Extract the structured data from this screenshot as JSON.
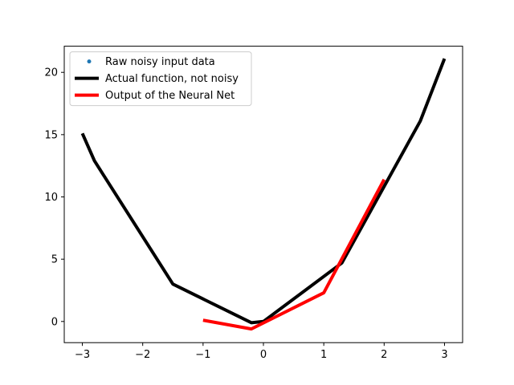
{
  "chart_data": {
    "type": "line",
    "title": "",
    "xlabel": "",
    "ylabel": "",
    "xlim": [
      -3.3,
      3.3
    ],
    "ylim": [
      -1.7,
      22.1
    ],
    "x_ticks": [
      -3,
      -2,
      -1,
      0,
      1,
      2,
      3
    ],
    "x_tick_labels": [
      "−3",
      "−2",
      "−1",
      "0",
      "1",
      "2",
      "3"
    ],
    "y_ticks": [
      0,
      5,
      10,
      15,
      20
    ],
    "y_tick_labels": [
      "0",
      "5",
      "10",
      "15",
      "20"
    ],
    "grid": false,
    "legend_position": "top-left",
    "series": [
      {
        "name": "Raw noisy input data",
        "kind": "scatter",
        "color": "#1f77b4",
        "x": [],
        "y": []
      },
      {
        "name": "Actual function, not noisy",
        "kind": "line",
        "color": "#000000",
        "x": [
          -3.0,
          -2.8,
          -1.5,
          -0.2,
          0.0,
          1.3,
          2.6,
          3.0
        ],
        "y": [
          15.1,
          12.9,
          3.0,
          -0.1,
          0.0,
          4.7,
          16.1,
          21.1
        ]
      },
      {
        "name": "Output of the Neural Net",
        "kind": "line",
        "color": "#ff0000",
        "x": [
          -1.0,
          -0.2,
          1.0,
          2.0
        ],
        "y": [
          0.1,
          -0.6,
          2.3,
          11.4
        ]
      }
    ]
  }
}
